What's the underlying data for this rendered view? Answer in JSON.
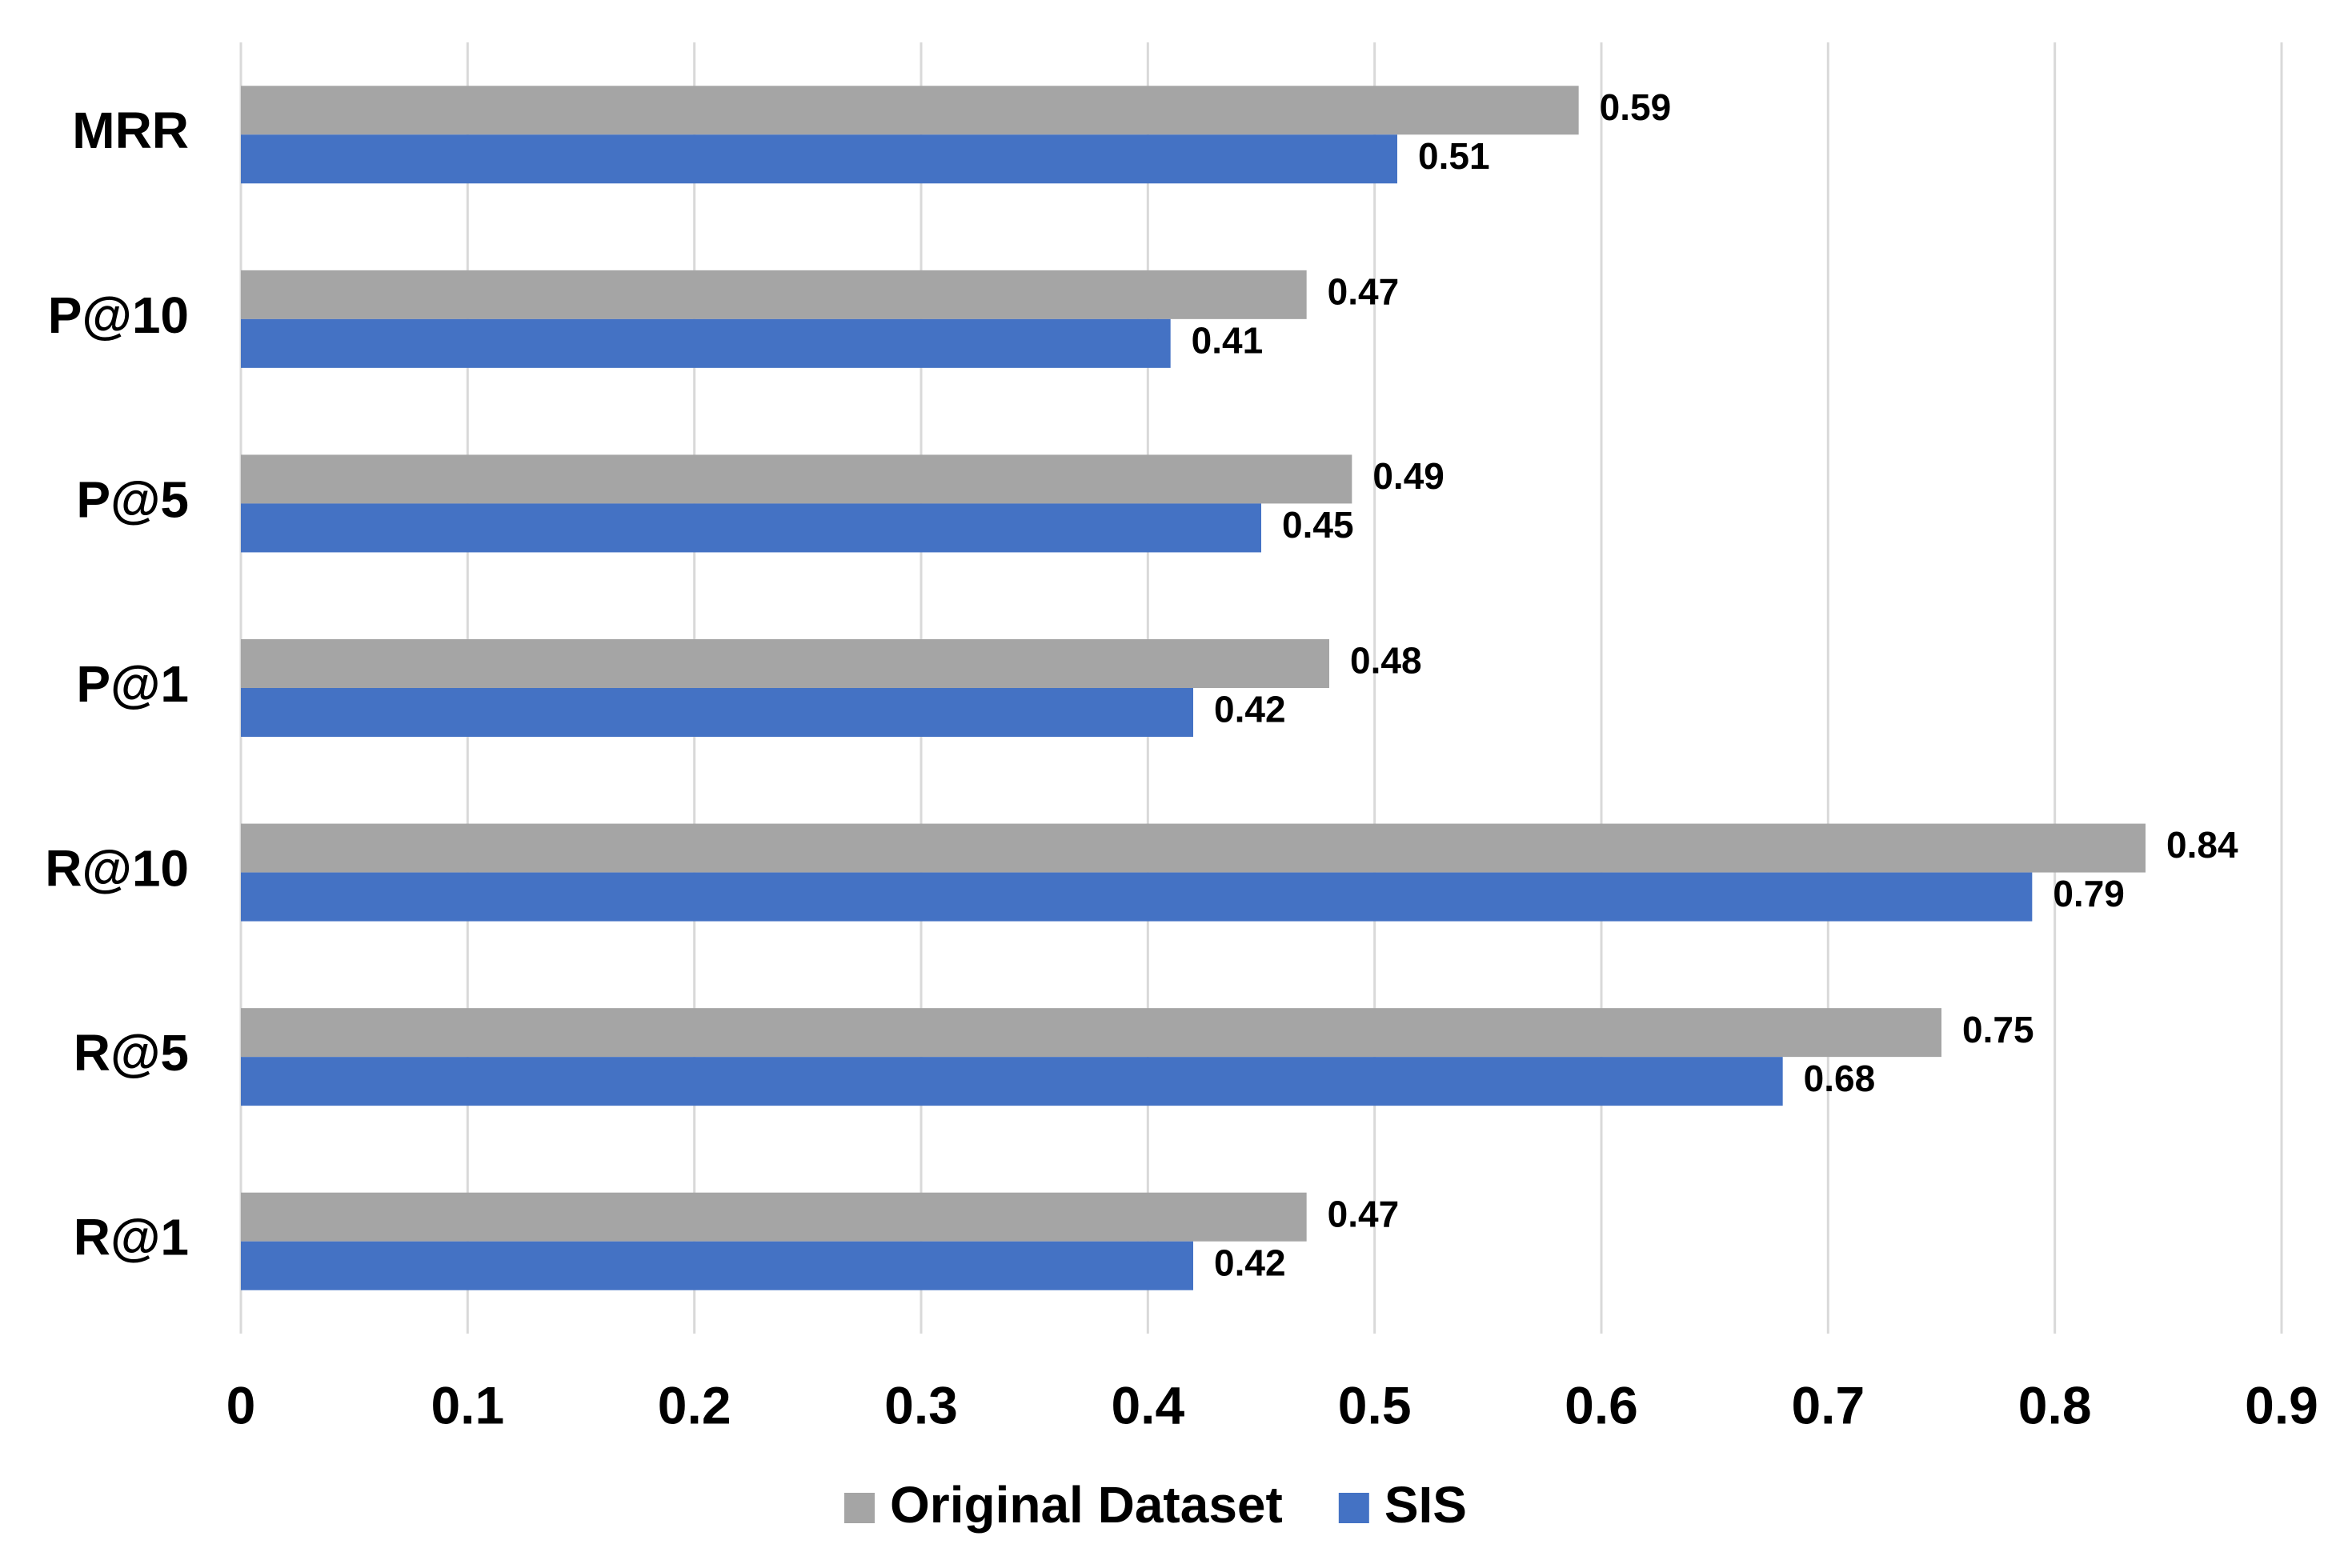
{
  "chart_data": {
    "type": "hbar",
    "categories": [
      "MRR",
      "P@10",
      "P@5",
      "P@1",
      "R@10",
      "R@5",
      "R@1"
    ],
    "series": [
      {
        "name": "Original Dataset",
        "color": "#a5a5a5",
        "values": [
          0.59,
          0.47,
          0.49,
          0.48,
          0.84,
          0.75,
          0.47
        ]
      },
      {
        "name": "SIS",
        "color": "#4472c4",
        "values": [
          0.51,
          0.41,
          0.45,
          0.42,
          0.79,
          0.68,
          0.42
        ]
      }
    ],
    "xlim": [
      0,
      0.9
    ],
    "xticks": [
      0,
      0.1,
      0.2,
      0.3,
      0.4,
      0.5,
      0.6,
      0.7,
      0.8,
      0.9
    ],
    "grid": true,
    "legend": "bottom"
  }
}
